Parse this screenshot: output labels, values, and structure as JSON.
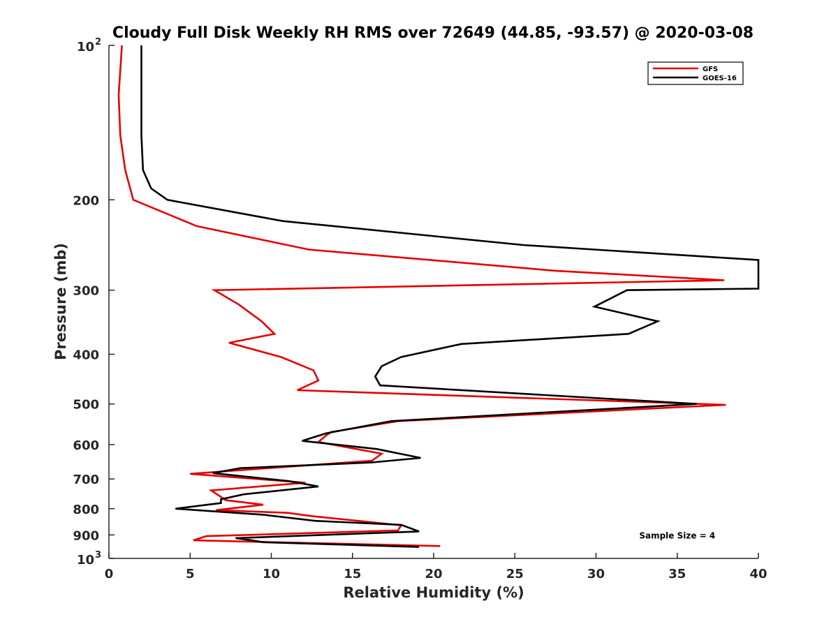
{
  "colors": {
    "background": "#ffffff",
    "axis": "#262626",
    "gfs": "#e50000",
    "goes16": "#000000"
  },
  "chart_data": {
    "type": "line",
    "orientation": "vertical-profile",
    "title": "Cloudy Full Disk Weekly RH RMS over 72649 (44.85, -93.57) @ 2020-03-08",
    "xlabel": "Relative Humidity (%)",
    "ylabel": "Pressure (mb)",
    "xlim": [
      0,
      40
    ],
    "ylim": [
      100,
      1000
    ],
    "yscale": "log",
    "yreversed": true,
    "grid": false,
    "legend_position": "top-right",
    "x_ticks": [
      {
        "value": 0,
        "label": "0"
      },
      {
        "value": 5,
        "label": "5"
      },
      {
        "value": 10,
        "label": "10"
      },
      {
        "value": 15,
        "label": "15"
      },
      {
        "value": 20,
        "label": "20"
      },
      {
        "value": 25,
        "label": "25"
      },
      {
        "value": 30,
        "label": "30"
      },
      {
        "value": 35,
        "label": "35"
      },
      {
        "value": 40,
        "label": "40"
      }
    ],
    "y_ticks": [
      {
        "value": 100,
        "base": "10",
        "exp": "2"
      },
      {
        "value": 200,
        "base": "200",
        "exp": ""
      },
      {
        "value": 300,
        "base": "300",
        "exp": ""
      },
      {
        "value": 400,
        "base": "400",
        "exp": ""
      },
      {
        "value": 500,
        "base": "500",
        "exp": ""
      },
      {
        "value": 600,
        "base": "600",
        "exp": ""
      },
      {
        "value": 700,
        "base": "700",
        "exp": ""
      },
      {
        "value": 800,
        "base": "800",
        "exp": ""
      },
      {
        "value": 900,
        "base": "900",
        "exp": ""
      },
      {
        "value": 1000,
        "base": "10",
        "exp": "3"
      }
    ],
    "annotations": [
      {
        "text": "Sample Size = 4",
        "x": 35,
        "y": 900
      }
    ],
    "series": [
      {
        "name": "GFS",
        "color": "#e50000",
        "points": [
          [
            0.8,
            100
          ],
          [
            0.6,
            125
          ],
          [
            0.7,
            150
          ],
          [
            1.0,
            175
          ],
          [
            1.5,
            200
          ],
          [
            5.4,
            225
          ],
          [
            12.3,
            250
          ],
          [
            27.5,
            275
          ],
          [
            37.9,
            287
          ],
          [
            6.5,
            300
          ],
          [
            8.0,
            320
          ],
          [
            9.4,
            345
          ],
          [
            10.2,
            365
          ],
          [
            7.4,
            380
          ],
          [
            10.6,
            405
          ],
          [
            12.6,
            430
          ],
          [
            12.9,
            450
          ],
          [
            11.6,
            470
          ],
          [
            38.0,
            502
          ],
          [
            17.8,
            540
          ],
          [
            13.7,
            567
          ],
          [
            13.4,
            575
          ],
          [
            12.9,
            593
          ],
          [
            16.8,
            625
          ],
          [
            16.2,
            645
          ],
          [
            5.0,
            684
          ],
          [
            12.1,
            712
          ],
          [
            6.3,
            737
          ],
          [
            7.2,
            770
          ],
          [
            9.5,
            786
          ],
          [
            6.6,
            805
          ],
          [
            11.0,
            815
          ],
          [
            12.5,
            827
          ],
          [
            18.0,
            862
          ],
          [
            17.8,
            882
          ],
          [
            6.0,
            905
          ],
          [
            5.2,
            922
          ],
          [
            20.4,
            946
          ]
        ]
      },
      {
        "name": "GOES-16",
        "color": "#000000",
        "points": [
          [
            2.0,
            100
          ],
          [
            2.0,
            150
          ],
          [
            2.1,
            175
          ],
          [
            2.6,
            190
          ],
          [
            3.6,
            200
          ],
          [
            10.7,
            220
          ],
          [
            25.5,
            245
          ],
          [
            40.0,
            262
          ],
          [
            40.0,
            298
          ],
          [
            31.9,
            300
          ],
          [
            29.9,
            323
          ],
          [
            33.8,
            345
          ],
          [
            32.0,
            365
          ],
          [
            21.7,
            382
          ],
          [
            18.0,
            405
          ],
          [
            16.8,
            422
          ],
          [
            16.4,
            442
          ],
          [
            16.7,
            460
          ],
          [
            36.2,
            500
          ],
          [
            17.4,
            540
          ],
          [
            13.4,
            570
          ],
          [
            11.9,
            590
          ],
          [
            16.5,
            612
          ],
          [
            19.2,
            637
          ],
          [
            16.2,
            650
          ],
          [
            8.1,
            667
          ],
          [
            6.4,
            682
          ],
          [
            11.1,
            707
          ],
          [
            12.9,
            724
          ],
          [
            8.3,
            750
          ],
          [
            6.9,
            767
          ],
          [
            6.9,
            780
          ],
          [
            4.1,
            800
          ],
          [
            9.5,
            822
          ],
          [
            12.7,
            845
          ],
          [
            18.0,
            860
          ],
          [
            19.1,
            886
          ],
          [
            7.8,
            913
          ],
          [
            8.6,
            920
          ],
          [
            9.5,
            930
          ],
          [
            19.1,
            950
          ]
        ]
      }
    ]
  }
}
